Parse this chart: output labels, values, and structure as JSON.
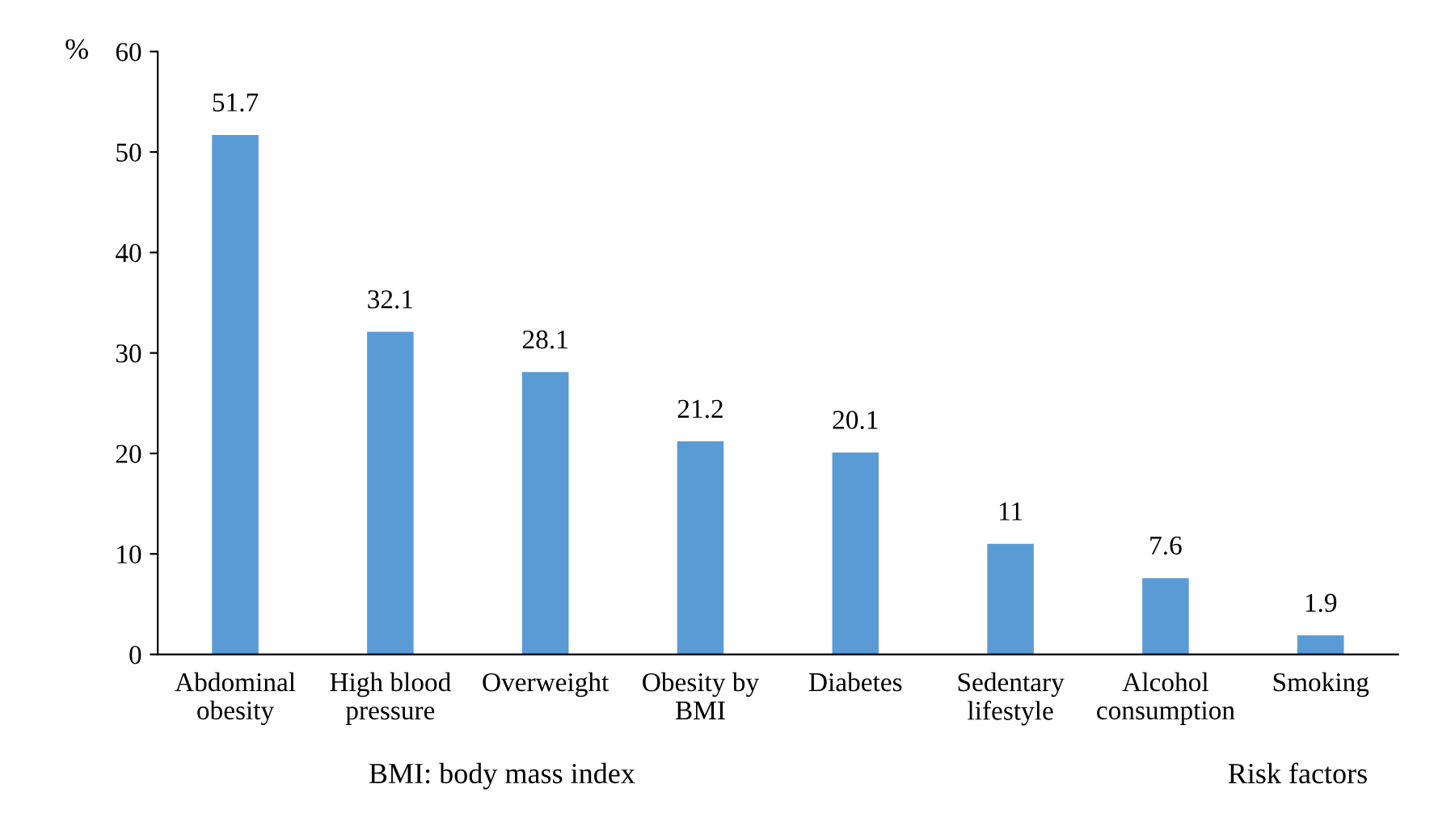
{
  "chart_data": {
    "type": "bar",
    "categories": [
      "Abdominal\nobesity",
      "High blood\npressure",
      "Overweight",
      "Obesity by\nBMI",
      "Diabetes",
      "Sedentary\nlifestyle",
      "Alcohol\nconsumption",
      "Smoking"
    ],
    "values": [
      51.7,
      32.1,
      28.1,
      21.2,
      20.1,
      11,
      7.6,
      1.9
    ],
    "color": "#5b9bd5",
    "ylabel": "%",
    "xlabel": "Risk factors",
    "annotations": [
      "BMI: body mass index"
    ],
    "ylim": [
      0,
      60
    ],
    "yticks": [
      0,
      10,
      20,
      30,
      40,
      50,
      60
    ],
    "data_labels": true,
    "grid": false,
    "legend": false
  }
}
